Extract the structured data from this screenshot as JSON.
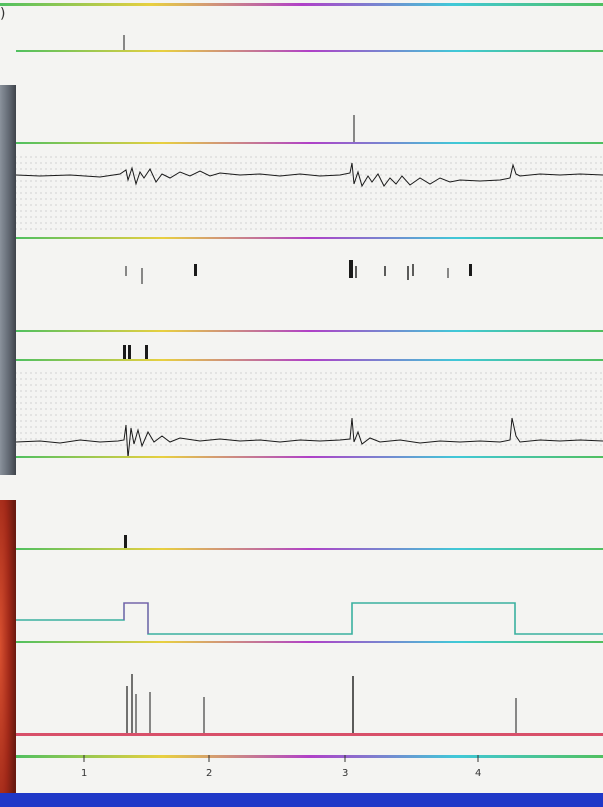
{
  "corner_glyph": ")",
  "x_axis": {
    "ticks": [
      "1",
      "2",
      "3",
      "4"
    ]
  },
  "colors": {
    "trace": "#1a1a1a",
    "rail_magenta": "#b040c8",
    "rail_green": "#50c060",
    "rail_yellow": "#e8d040",
    "rail_cyan": "#40c8d8",
    "dot_grid": "#b8b8b8",
    "footer": "#1f38c8",
    "left_photo_gray": "#6a7280",
    "left_photo_red": "#b83020"
  },
  "icons": {
    "corner": "glyph-paren"
  }
}
